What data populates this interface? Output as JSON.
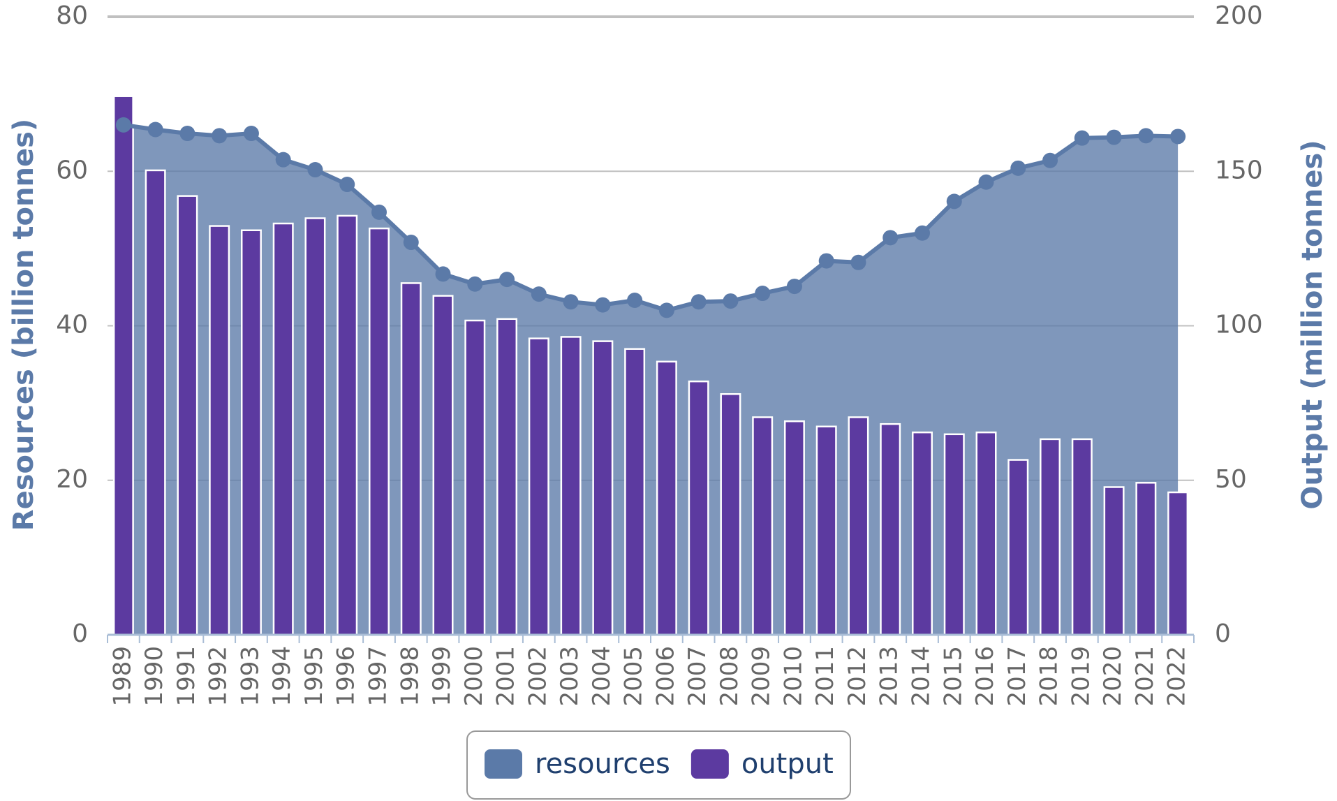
{
  "chart_data": {
    "type": "bar-area",
    "categories": [
      "1989",
      "1990",
      "1991",
      "1992",
      "1993",
      "1994",
      "1995",
      "1996",
      "1997",
      "1998",
      "1999",
      "2000",
      "2001",
      "2002",
      "2003",
      "2004",
      "2005",
      "2006",
      "2007",
      "2008",
      "2009",
      "2010",
      "2011",
      "2012",
      "2013",
      "2014",
      "2015",
      "2016",
      "2017",
      "2018",
      "2019",
      "2020",
      "2021",
      "2022"
    ],
    "series": [
      {
        "name": "resources",
        "type": "area",
        "axis": "y",
        "color": "#5b7aa8",
        "values": [
          66,
          65.4,
          64.9,
          64.6,
          64.9,
          61.5,
          60.2,
          58.3,
          54.7,
          50.8,
          46.7,
          45.4,
          46.0,
          44.1,
          43.1,
          42.7,
          43.3,
          42.0,
          43.1,
          43.2,
          44.2,
          45.1,
          48.4,
          48.2,
          51.4,
          52.0,
          56.1,
          58.6,
          60.4,
          61.4,
          64.3,
          64.4,
          64.6,
          64.5
        ]
      },
      {
        "name": "output",
        "type": "bar",
        "axis": "y2",
        "color": "#5c3aa0",
        "values": [
          174.3,
          150.3,
          142,
          132.3,
          130.9,
          133.1,
          134.8,
          135.6,
          131.5,
          113.8,
          109.7,
          101.7,
          102.2,
          95.9,
          96.4,
          95,
          92.5,
          88.4,
          82,
          77.9,
          70.4,
          69.1,
          67.4,
          70.4,
          68.2,
          65.5,
          64.9,
          65.5,
          56.6,
          63.3,
          63.3,
          47.8,
          49.2,
          46.1
        ]
      }
    ],
    "ylabel": "Resources (billion tonnes)",
    "y2label": "Output (million tonnes)",
    "ylim": [
      0,
      80
    ],
    "yticks": [
      0,
      20,
      40,
      60,
      80
    ],
    "y2lim": [
      0,
      200
    ],
    "y2ticks": [
      0,
      50,
      100,
      150,
      200
    ],
    "grid": true,
    "legend": "bottom"
  }
}
